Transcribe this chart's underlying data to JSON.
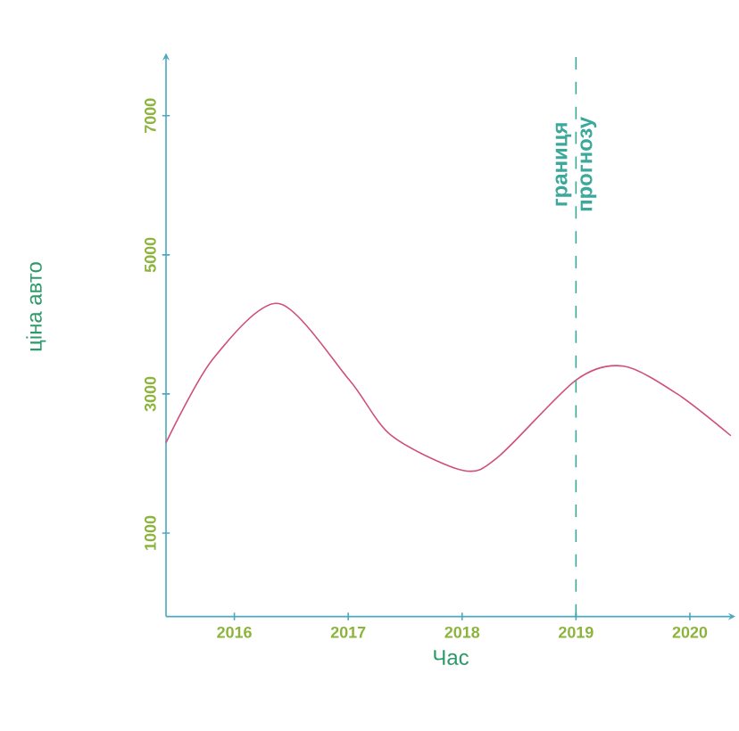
{
  "chart_data": {
    "type": "line",
    "xlabel": "Час",
    "ylabel": "ціна авто",
    "x": [
      2015.4,
      2015.81,
      2016.39,
      2017.01,
      2017.38,
      2018.01,
      2018.32,
      2019.0,
      2019.42,
      2019.89,
      2020.36
    ],
    "series": [
      {
        "color": "#d0507a",
        "values": [
          2300,
          3500,
          4300,
          3200,
          2400,
          1900,
          2100,
          3200,
          3400,
          3000,
          2400
        ]
      }
    ],
    "xlim": [
      2015.4,
      2020.4
    ],
    "ylim": [
      -200,
      7900
    ],
    "xticks": [
      2016,
      2017,
      2018,
      2019,
      2020
    ],
    "yticks": [
      1000,
      3000,
      5000,
      7000
    ],
    "ref_lines": [
      {
        "axis": "x",
        "value": 2019,
        "label": "границя прогнозу",
        "color": "#3aa89a",
        "line_style": "dashed"
      }
    ],
    "grid": false,
    "marker": "none",
    "line_style": "solid"
  }
}
